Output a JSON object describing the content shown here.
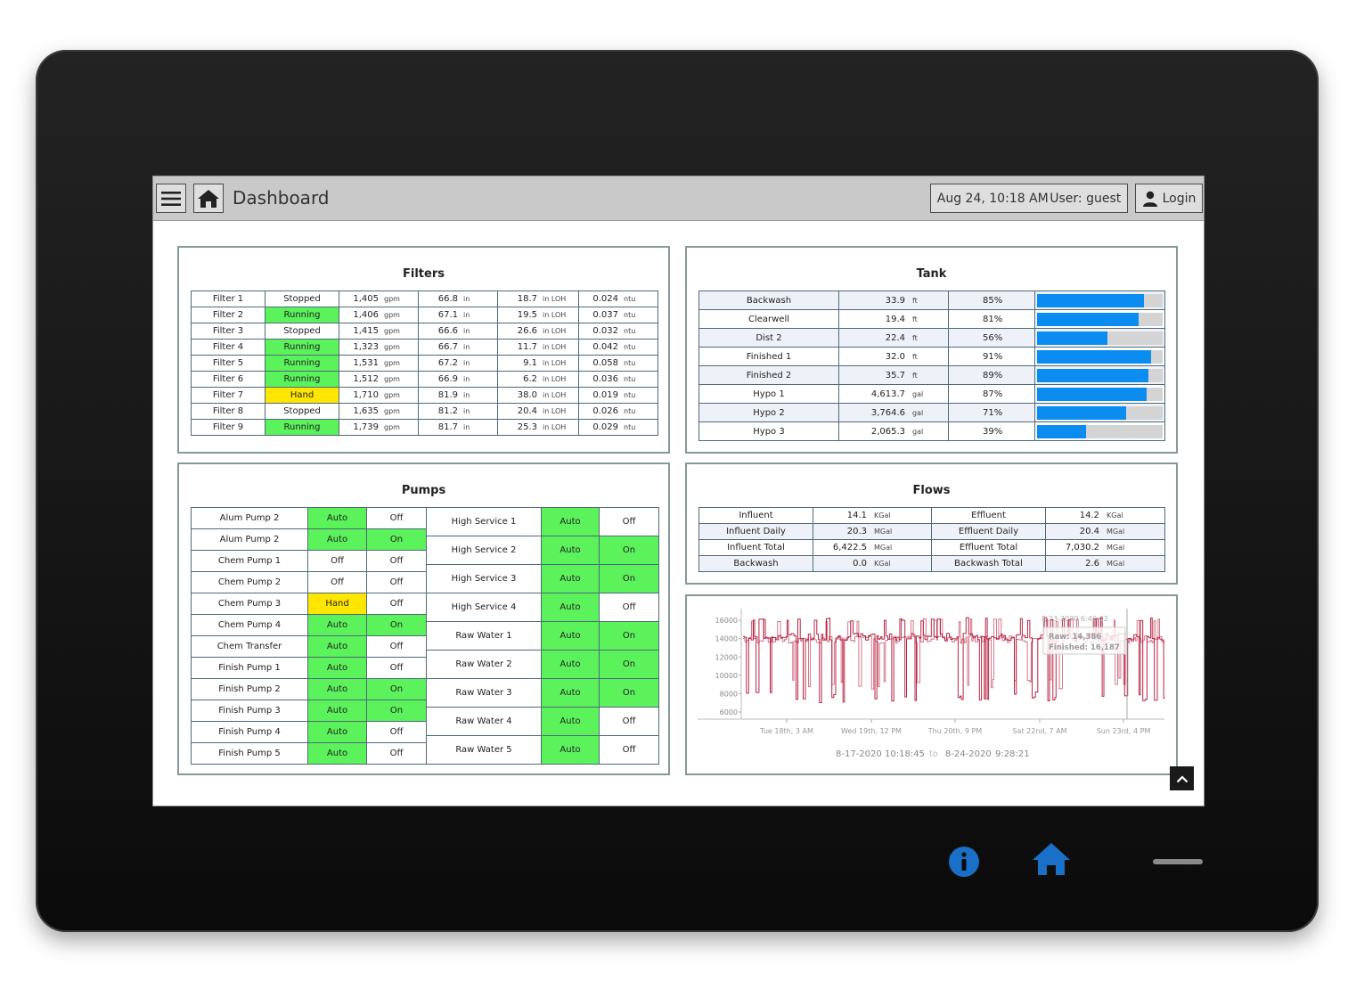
{
  "header": {
    "title": "Dashboard",
    "datetime": "Aug 24, 10:18 AM",
    "user": "User: guest",
    "login_label": "Login"
  },
  "filters": {
    "title": "Filters",
    "rows": [
      {
        "name": "Filter 1",
        "status": "Stopped",
        "flow": "1,405",
        "flow_unit": "gpm",
        "level": "66.8",
        "level_unit": "in",
        "loh": "18.7",
        "loh_unit": "in LOH",
        "turb": "0.024",
        "turb_unit": "ntu"
      },
      {
        "name": "Filter 2",
        "status": "Running",
        "flow": "1,406",
        "flow_unit": "gpm",
        "level": "67.1",
        "level_unit": "in",
        "loh": "19.5",
        "loh_unit": "in LOH",
        "turb": "0.037",
        "turb_unit": "ntu"
      },
      {
        "name": "Filter 3",
        "status": "Stopped",
        "flow": "1,415",
        "flow_unit": "gpm",
        "level": "66.6",
        "level_unit": "in",
        "loh": "26.6",
        "loh_unit": "in LOH",
        "turb": "0.032",
        "turb_unit": "ntu"
      },
      {
        "name": "Filter 4",
        "status": "Running",
        "flow": "1,323",
        "flow_unit": "gpm",
        "level": "66.7",
        "level_unit": "in",
        "loh": "11.7",
        "loh_unit": "in LOH",
        "turb": "0.042",
        "turb_unit": "ntu"
      },
      {
        "name": "Filter 5",
        "status": "Running",
        "flow": "1,531",
        "flow_unit": "gpm",
        "level": "67.2",
        "level_unit": "in",
        "loh": "9.1",
        "loh_unit": "in LOH",
        "turb": "0.058",
        "turb_unit": "ntu"
      },
      {
        "name": "Filter 6",
        "status": "Running",
        "flow": "1,512",
        "flow_unit": "gpm",
        "level": "66.9",
        "level_unit": "in",
        "loh": "6.2",
        "loh_unit": "in LOH",
        "turb": "0.036",
        "turb_unit": "ntu"
      },
      {
        "name": "Filter 7",
        "status": "Hand",
        "flow": "1,710",
        "flow_unit": "gpm",
        "level": "81.9",
        "level_unit": "in",
        "loh": "38.0",
        "loh_unit": "in LOH",
        "turb": "0.019",
        "turb_unit": "ntu"
      },
      {
        "name": "Filter 8",
        "status": "Stopped",
        "flow": "1,635",
        "flow_unit": "gpm",
        "level": "81.2",
        "level_unit": "in",
        "loh": "20.4",
        "loh_unit": "in LOH",
        "turb": "0.026",
        "turb_unit": "ntu"
      },
      {
        "name": "Filter 9",
        "status": "Running",
        "flow": "1,739",
        "flow_unit": "gpm",
        "level": "81.7",
        "level_unit": "in",
        "loh": "25.3",
        "loh_unit": "in LOH",
        "turb": "0.029",
        "turb_unit": "ntu"
      }
    ]
  },
  "tank": {
    "title": "Tank",
    "rows": [
      {
        "name": "Backwash",
        "value": "33.9",
        "unit": "ft",
        "pct": "85%",
        "fill": 0.85
      },
      {
        "name": "Clearwell",
        "value": "19.4",
        "unit": "ft",
        "pct": "81%",
        "fill": 0.81
      },
      {
        "name": "Dist 2",
        "value": "22.4",
        "unit": "ft",
        "pct": "56%",
        "fill": 0.56
      },
      {
        "name": "Finished 1",
        "value": "32.0",
        "unit": "ft",
        "pct": "91%",
        "fill": 0.91
      },
      {
        "name": "Finished 2",
        "value": "35.7",
        "unit": "ft",
        "pct": "89%",
        "fill": 0.89
      },
      {
        "name": "Hypo 1",
        "value": "4,613.7",
        "unit": "gal",
        "pct": "87%",
        "fill": 0.87
      },
      {
        "name": "Hypo 2",
        "value": "3,764.6",
        "unit": "gal",
        "pct": "71%",
        "fill": 0.71
      },
      {
        "name": "Hypo 3",
        "value": "2,065.3",
        "unit": "gal",
        "pct": "39%",
        "fill": 0.39
      }
    ]
  },
  "pumps": {
    "title": "Pumps",
    "left": [
      {
        "name": "Alum Pump 2",
        "mode": "Auto",
        "state": "Off"
      },
      {
        "name": "Alum Pump 2",
        "mode": "Auto",
        "state": "On"
      },
      {
        "name": "Chem Pump 1",
        "mode": "Off",
        "state": "Off"
      },
      {
        "name": "Chem Pump 2",
        "mode": "Off",
        "state": "Off"
      },
      {
        "name": "Chem Pump 3",
        "mode": "Hand",
        "state": "Off"
      },
      {
        "name": "Chem Pump 4",
        "mode": "Auto",
        "state": "On"
      },
      {
        "name": "Chem Transfer",
        "mode": "Auto",
        "state": "Off"
      },
      {
        "name": "Finish Pump 1",
        "mode": "Auto",
        "state": "Off"
      },
      {
        "name": "Finish Pump 2",
        "mode": "Auto",
        "state": "On"
      },
      {
        "name": "Finish Pump 3",
        "mode": "Auto",
        "state": "On"
      },
      {
        "name": "Finish Pump 4",
        "mode": "Auto",
        "state": "Off"
      },
      {
        "name": "Finish Pump 5",
        "mode": "Auto",
        "state": "Off"
      }
    ],
    "right": [
      {
        "name": "High Service 1",
        "mode": "Auto",
        "state": "Off"
      },
      {
        "name": "High Service 2",
        "mode": "Auto",
        "state": "On"
      },
      {
        "name": "High Service 3",
        "mode": "Auto",
        "state": "On"
      },
      {
        "name": "High Service 4",
        "mode": "Auto",
        "state": "Off"
      },
      {
        "name": "Raw Water 1",
        "mode": "Auto",
        "state": "On"
      },
      {
        "name": "Raw Water 2",
        "mode": "Auto",
        "state": "On"
      },
      {
        "name": "Raw Water 3",
        "mode": "Auto",
        "state": "On"
      },
      {
        "name": "Raw Water 4",
        "mode": "Auto",
        "state": "Off"
      },
      {
        "name": "Raw Water 5",
        "mode": "Auto",
        "state": "Off"
      }
    ]
  },
  "flows": {
    "title": "Flows",
    "rows": [
      {
        "l_name": "Influent",
        "l_value": "14.1",
        "l_unit": "KGal",
        "r_name": "Effluent",
        "r_value": "14.2",
        "r_unit": "KGal"
      },
      {
        "l_name": "Influent Daily",
        "l_value": "20.3",
        "l_unit": "MGal",
        "r_name": "Effluent Daily",
        "r_value": "20.4",
        "r_unit": "MGal"
      },
      {
        "l_name": "Influent Total",
        "l_value": "6,422.5",
        "l_unit": "MGal",
        "r_name": "Effluent Total",
        "r_value": "7,030.2",
        "r_unit": "MGal"
      },
      {
        "l_name": "Backwash",
        "l_value": "0.0",
        "l_unit": "KGal",
        "r_name": "Backwash Total",
        "r_value": "2.6",
        "r_unit": "MGal"
      }
    ]
  },
  "chart_data": {
    "type": "line",
    "y_ticks": [
      "16000",
      "14000",
      "12000",
      "10000",
      "8000",
      "6000"
    ],
    "ylim": [
      6000,
      16500
    ],
    "x_ticks": [
      "Tue 18th, 3 AM",
      "Wed 19th, 12 PM",
      "Thu 20th, 9 PM",
      "Sat 22nd, 7 AM",
      "Sun 23rd, 4 PM"
    ],
    "series": [
      {
        "name": "Raw",
        "color": "#b01030"
      },
      {
        "name": "Finished",
        "color": "#b01030"
      }
    ],
    "tooltip": {
      "time": "8-23-2020 6:40:02",
      "raw": "Raw: 14,386",
      "finished": "Finished: 16,187"
    },
    "range_start_date": "8-17-2020",
    "range_start_time": "10:18:45",
    "range_sep": "to",
    "range_end_date": "8-24-2020",
    "range_end_time": "9:28:21",
    "grid": false
  },
  "colors": {
    "bezel": "#111111",
    "accent_green": "#5cf25c",
    "accent_yellow": "#ffe600",
    "bar_blue": "#0a8cf0",
    "hw_blue": "#1a6fc7"
  }
}
